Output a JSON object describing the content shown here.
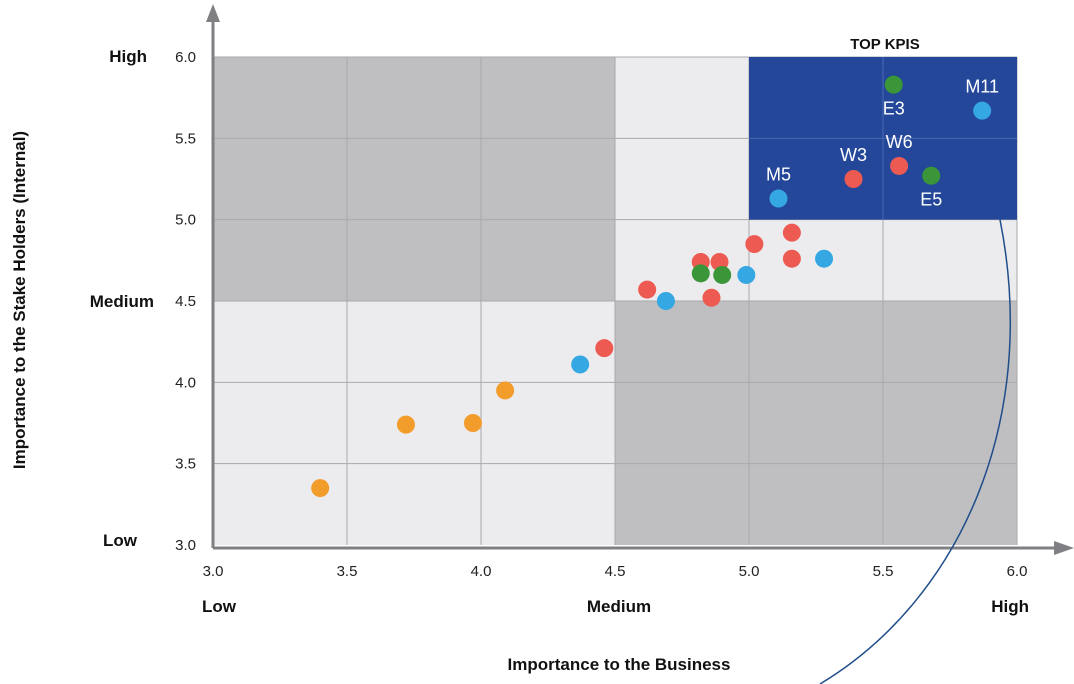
{
  "colors": {
    "dark_zone": "#bfbfc1",
    "light_zone": "#ececee",
    "top_zone": "#24479a",
    "grid": "#a9a9ad",
    "axis": "#7f7f84",
    "curve": "#1f4d8a",
    "red": "#ec5a52",
    "green": "#3a9638",
    "blue": "#35a7e2",
    "orange": "#f29c2c"
  },
  "chart_data": {
    "type": "scatter",
    "title": "",
    "xlabel": "Importance to the Business",
    "ylabel": "Importance to the Stake Holders (Internal)",
    "xlim": [
      3.0,
      6.0
    ],
    "ylim": [
      3.0,
      6.0
    ],
    "xticks": [
      "3.0",
      "3.5",
      "4.0",
      "4.5",
      "5.0",
      "5.5",
      "6.0"
    ],
    "yticks": [
      "3.0",
      "3.5",
      "4.0",
      "4.5",
      "5.0",
      "5.5",
      "6.0"
    ],
    "x_levels": [
      "Low",
      "Medium",
      "High"
    ],
    "y_levels": [
      "Low",
      "Medium",
      "High"
    ],
    "grid": true,
    "zones": [
      {
        "shade": "dark",
        "x": [
          3.0,
          4.5
        ],
        "y": [
          4.5,
          6.0
        ]
      },
      {
        "shade": "dark",
        "x": [
          4.5,
          6.0
        ],
        "y": [
          3.0,
          4.5
        ]
      },
      {
        "shade": "light",
        "x": [
          3.0,
          4.5
        ],
        "y": [
          3.0,
          4.5
        ]
      },
      {
        "shade": "light",
        "x": [
          4.5,
          6.0
        ],
        "y": [
          4.5,
          6.0
        ]
      },
      {
        "shade": "top",
        "x": [
          5.0,
          6.0
        ],
        "y": [
          5.0,
          6.0
        ],
        "label": "TOP KPIS"
      }
    ],
    "points": [
      {
        "x": 3.4,
        "y": 3.35,
        "color": "orange",
        "label": ""
      },
      {
        "x": 3.72,
        "y": 3.74,
        "color": "orange",
        "label": ""
      },
      {
        "x": 3.97,
        "y": 3.75,
        "color": "orange",
        "label": ""
      },
      {
        "x": 4.09,
        "y": 3.95,
        "color": "orange",
        "label": ""
      },
      {
        "x": 4.37,
        "y": 4.11,
        "color": "blue",
        "label": ""
      },
      {
        "x": 4.46,
        "y": 4.21,
        "color": "red",
        "label": ""
      },
      {
        "x": 4.62,
        "y": 4.57,
        "color": "red",
        "label": ""
      },
      {
        "x": 4.69,
        "y": 4.5,
        "color": "blue",
        "label": ""
      },
      {
        "x": 4.82,
        "y": 4.74,
        "color": "red",
        "label": ""
      },
      {
        "x": 4.82,
        "y": 4.67,
        "color": "green",
        "label": ""
      },
      {
        "x": 4.86,
        "y": 4.52,
        "color": "red",
        "label": ""
      },
      {
        "x": 4.89,
        "y": 4.74,
        "color": "red",
        "label": ""
      },
      {
        "x": 4.9,
        "y": 4.66,
        "color": "green",
        "label": ""
      },
      {
        "x": 4.99,
        "y": 4.66,
        "color": "blue",
        "label": ""
      },
      {
        "x": 5.02,
        "y": 4.85,
        "color": "red",
        "label": ""
      },
      {
        "x": 5.16,
        "y": 4.92,
        "color": "red",
        "label": ""
      },
      {
        "x": 5.16,
        "y": 4.76,
        "color": "red",
        "label": ""
      },
      {
        "x": 5.28,
        "y": 4.76,
        "color": "blue",
        "label": ""
      },
      {
        "x": 5.11,
        "y": 5.13,
        "color": "blue",
        "label": "M5"
      },
      {
        "x": 5.39,
        "y": 5.25,
        "color": "red",
        "label": "W3"
      },
      {
        "x": 5.56,
        "y": 5.33,
        "color": "red",
        "label": "W6"
      },
      {
        "x": 5.54,
        "y": 5.83,
        "color": "green",
        "label": "E3"
      },
      {
        "x": 5.68,
        "y": 5.27,
        "color": "green",
        "label": "E5"
      },
      {
        "x": 5.87,
        "y": 5.67,
        "color": "blue",
        "label": "M11"
      }
    ]
  }
}
